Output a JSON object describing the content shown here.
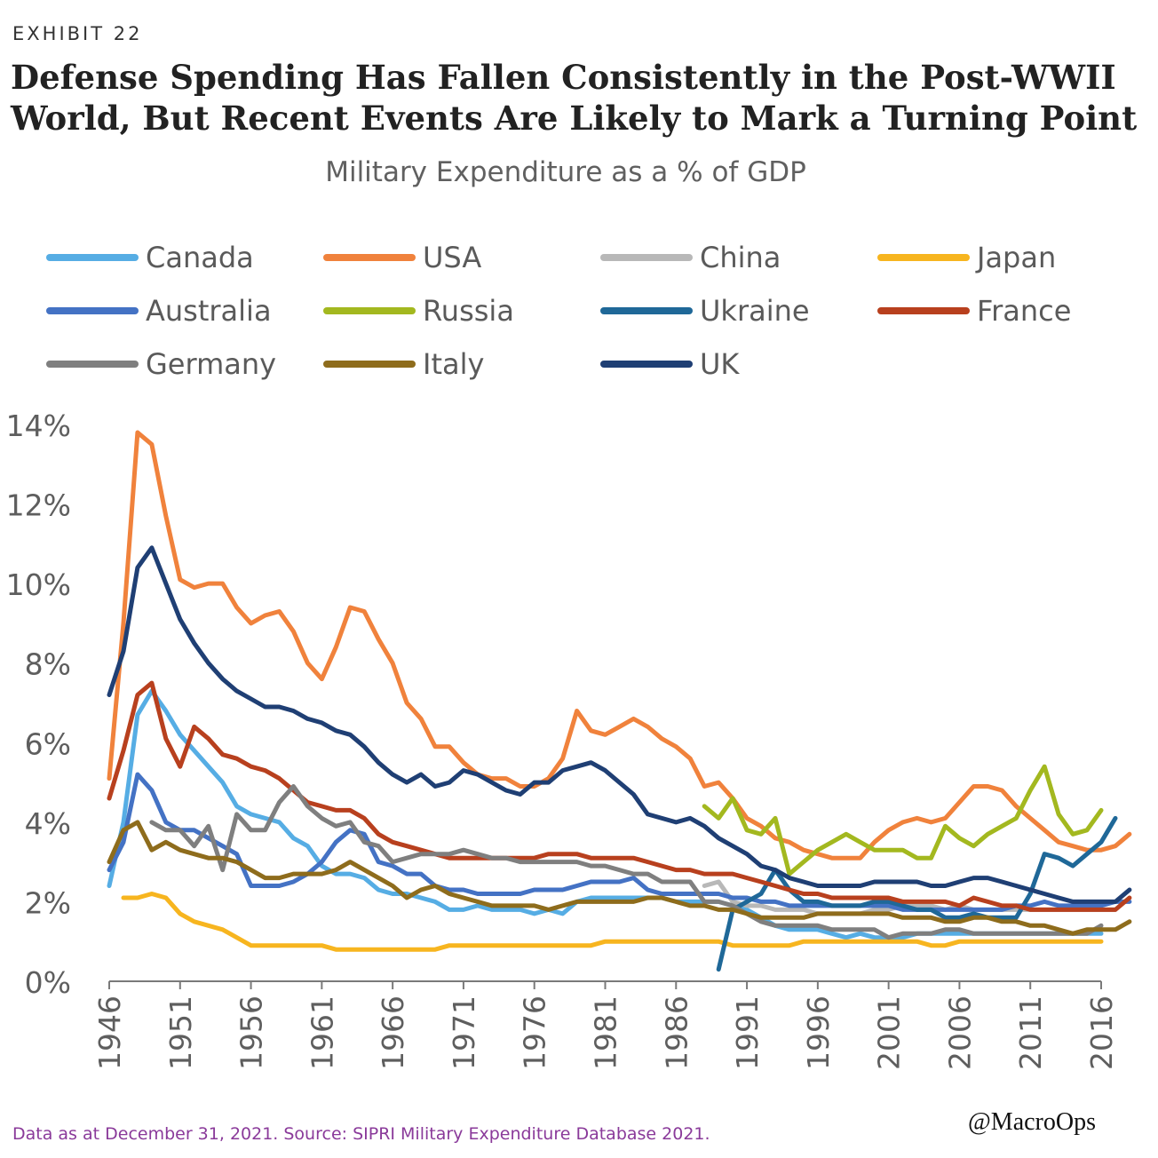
{
  "header": {
    "exhibit": "EXHIBIT 22",
    "title_line1": "Defense Spending Has Fallen Consistently in the Post-WWII",
    "title_line2": "World, But Recent Events Are Likely to Mark a Turning Point",
    "subtitle": "Military Expenditure as a % of GDP"
  },
  "footer": {
    "source": "Data as at December 31, 2021. Source: SIPRI Military Expenditure Database 2021.",
    "credit": "@MacroOps"
  },
  "chart_data": {
    "type": "line",
    "title": "Military Expenditure as a % of GDP",
    "xlabel": "",
    "ylabel": "",
    "xlim": [
      1946,
      2016
    ],
    "ylim": [
      0,
      14
    ],
    "yticks": [
      0,
      2,
      4,
      6,
      8,
      10,
      12,
      14
    ],
    "ytick_labels": [
      "0%",
      "2%",
      "4%",
      "6%",
      "8%",
      "10%",
      "12%",
      "14%"
    ],
    "xticks": [
      1946,
      1951,
      1956,
      1961,
      1966,
      1971,
      1976,
      1981,
      1986,
      1991,
      1996,
      2001,
      2006,
      2011,
      2016
    ],
    "grid": false,
    "legend_position": "top",
    "series": [
      {
        "name": "Canada",
        "color": "#56ade4",
        "start": 1946,
        "values": [
          2.4,
          4.0,
          6.7,
          7.3,
          6.8,
          6.2,
          5.8,
          5.4,
          5.0,
          4.4,
          4.2,
          4.1,
          4.0,
          3.6,
          3.4,
          2.9,
          2.7,
          2.7,
          2.6,
          2.3,
          2.2,
          2.2,
          2.1,
          2.0,
          1.8,
          1.8,
          1.9,
          1.8,
          1.8,
          1.8,
          1.7,
          1.8,
          1.7,
          2.0,
          2.1,
          2.1,
          2.1,
          2.1,
          2.1,
          2.1,
          2.0,
          2.0,
          2.0,
          2.0,
          1.9,
          1.8,
          1.6,
          1.4,
          1.3,
          1.3,
          1.3,
          1.2,
          1.1,
          1.2,
          1.1,
          1.1,
          1.1,
          1.2,
          1.2,
          1.2,
          1.2,
          1.2,
          1.2,
          1.2,
          1.2,
          1.2,
          1.2,
          1.2,
          1.2,
          1.2,
          1.2
        ]
      },
      {
        "name": "USA",
        "color": "#f0823c",
        "start": 1946,
        "values": [
          5.1,
          9.0,
          13.8,
          13.5,
          11.7,
          10.1,
          9.9,
          10.0,
          10.0,
          9.4,
          9.0,
          9.2,
          9.3,
          8.8,
          8.0,
          7.6,
          8.4,
          9.4,
          9.3,
          8.6,
          8.0,
          7.0,
          6.6,
          5.9,
          5.9,
          5.5,
          5.2,
          5.1,
          5.1,
          4.9,
          4.9,
          5.1,
          5.6,
          6.8,
          6.3,
          6.2,
          6.4,
          6.6,
          6.4,
          6.1,
          5.9,
          5.6,
          4.9,
          5.0,
          4.6,
          4.1,
          3.9,
          3.6,
          3.5,
          3.3,
          3.2,
          3.1,
          3.1,
          3.1,
          3.5,
          3.8,
          4.0,
          4.1,
          4.0,
          4.1,
          4.5,
          4.9,
          4.9,
          4.8,
          4.4,
          4.1,
          3.8,
          3.5,
          3.4,
          3.3,
          3.3,
          3.4,
          3.7
        ]
      },
      {
        "name": "China",
        "color": "#b8b8b8",
        "start": 1988,
        "values": [
          2.4,
          2.5,
          2.0,
          1.9,
          1.9,
          1.8,
          1.8,
          1.8,
          1.7,
          1.7,
          1.7,
          1.7,
          1.8,
          1.8,
          1.9,
          1.9,
          1.9,
          1.8,
          1.9,
          1.8,
          1.8,
          1.8,
          1.8,
          1.8,
          1.8,
          1.8,
          1.8,
          1.8,
          1.8,
          1.8
        ]
      },
      {
        "name": "Japan",
        "color": "#f7b51f",
        "start": 1947,
        "values": [
          2.1,
          2.1,
          2.2,
          2.1,
          1.7,
          1.5,
          1.4,
          1.3,
          1.1,
          0.9,
          0.9,
          0.9,
          0.9,
          0.9,
          0.9,
          0.8,
          0.8,
          0.8,
          0.8,
          0.8,
          0.8,
          0.8,
          0.8,
          0.9,
          0.9,
          0.9,
          0.9,
          0.9,
          0.9,
          0.9,
          0.9,
          0.9,
          0.9,
          0.9,
          1.0,
          1.0,
          1.0,
          1.0,
          1.0,
          1.0,
          1.0,
          1.0,
          1.0,
          0.9,
          0.9,
          0.9,
          0.9,
          0.9,
          1.0,
          1.0,
          1.0,
          1.0,
          1.0,
          1.0,
          1.0,
          1.0,
          1.0,
          0.9,
          0.9,
          1.0,
          1.0,
          1.0,
          1.0,
          1.0,
          1.0,
          1.0,
          1.0,
          1.0,
          1.0,
          1.0
        ]
      },
      {
        "name": "Australia",
        "color": "#4472c4",
        "start": 1946,
        "values": [
          2.8,
          3.5,
          5.2,
          4.8,
          4.0,
          3.8,
          3.8,
          3.6,
          3.4,
          3.2,
          2.4,
          2.4,
          2.4,
          2.5,
          2.7,
          3.0,
          3.5,
          3.8,
          3.7,
          3.0,
          2.9,
          2.7,
          2.7,
          2.4,
          2.3,
          2.3,
          2.2,
          2.2,
          2.2,
          2.2,
          2.3,
          2.3,
          2.3,
          2.4,
          2.5,
          2.5,
          2.5,
          2.6,
          2.3,
          2.2,
          2.2,
          2.2,
          2.2,
          2.2,
          2.1,
          2.1,
          2.0,
          2.0,
          1.9,
          1.9,
          1.9,
          1.9,
          1.9,
          1.9,
          1.9,
          1.9,
          1.8,
          1.8,
          1.8,
          1.8,
          1.8,
          1.8,
          1.8,
          1.8,
          1.9,
          1.9,
          2.0,
          1.9,
          1.9,
          1.9,
          1.9,
          2.0,
          2.0
        ]
      },
      {
        "name": "Russia",
        "color": "#a3b81f",
        "start": 1988,
        "values": [
          4.4,
          4.1,
          4.6,
          3.8,
          3.7,
          4.1,
          2.7,
          3.0,
          3.3,
          3.5,
          3.7,
          3.5,
          3.3,
          3.3,
          3.3,
          3.1,
          3.1,
          3.9,
          3.6,
          3.4,
          3.7,
          3.9,
          4.1,
          4.8,
          5.4,
          4.2,
          3.7,
          3.8,
          4.3
        ]
      },
      {
        "name": "Ukraine",
        "color": "#1f6898",
        "start": 1989,
        "values": [
          0.3,
          1.8,
          2.0,
          2.2,
          2.8,
          2.3,
          2.0,
          2.0,
          1.9,
          1.9,
          1.9,
          2.0,
          2.0,
          1.9,
          1.8,
          1.8,
          1.6,
          1.6,
          1.7,
          1.6,
          1.6,
          1.6,
          2.2,
          3.2,
          3.1,
          2.9,
          3.2,
          3.5,
          4.1
        ]
      },
      {
        "name": "France",
        "color": "#b8401e",
        "start": 1946,
        "values": [
          4.6,
          5.8,
          7.2,
          7.5,
          6.1,
          5.4,
          6.4,
          6.1,
          5.7,
          5.6,
          5.4,
          5.3,
          5.1,
          4.8,
          4.5,
          4.4,
          4.3,
          4.3,
          4.1,
          3.7,
          3.5,
          3.4,
          3.3,
          3.2,
          3.1,
          3.1,
          3.1,
          3.1,
          3.1,
          3.1,
          3.1,
          3.2,
          3.2,
          3.2,
          3.1,
          3.1,
          3.1,
          3.1,
          3.0,
          2.9,
          2.8,
          2.8,
          2.7,
          2.7,
          2.7,
          2.6,
          2.5,
          2.4,
          2.3,
          2.2,
          2.2,
          2.1,
          2.1,
          2.1,
          2.1,
          2.1,
          2.0,
          2.0,
          2.0,
          2.0,
          1.9,
          2.1,
          2.0,
          1.9,
          1.9,
          1.8,
          1.8,
          1.8,
          1.8,
          1.8,
          1.8,
          1.8,
          2.1
        ]
      },
      {
        "name": "Germany",
        "color": "#7f7f7f",
        "start": 1949,
        "values": [
          4.0,
          3.8,
          3.8,
          3.4,
          3.9,
          2.8,
          4.2,
          3.8,
          3.8,
          4.5,
          4.9,
          4.4,
          4.1,
          3.9,
          4.0,
          3.5,
          3.4,
          3.0,
          3.1,
          3.2,
          3.2,
          3.2,
          3.3,
          3.2,
          3.1,
          3.1,
          3.0,
          3.0,
          3.0,
          3.0,
          3.0,
          2.9,
          2.9,
          2.8,
          2.7,
          2.7,
          2.5,
          2.5,
          2.5,
          2.0,
          2.0,
          1.9,
          1.7,
          1.5,
          1.4,
          1.4,
          1.4,
          1.4,
          1.3,
          1.3,
          1.3,
          1.3,
          1.1,
          1.2,
          1.2,
          1.2,
          1.3,
          1.3,
          1.2,
          1.2,
          1.2,
          1.2,
          1.2,
          1.2,
          1.2,
          1.2,
          1.2,
          1.4
        ]
      },
      {
        "name": "Italy",
        "color": "#8e6c1c",
        "start": 1946,
        "values": [
          3.0,
          3.8,
          4.0,
          3.3,
          3.5,
          3.3,
          3.2,
          3.1,
          3.1,
          3.0,
          2.8,
          2.6,
          2.6,
          2.7,
          2.7,
          2.7,
          2.8,
          3.0,
          2.8,
          2.6,
          2.4,
          2.1,
          2.3,
          2.4,
          2.2,
          2.1,
          2.0,
          1.9,
          1.9,
          1.9,
          1.9,
          1.8,
          1.9,
          2.0,
          2.0,
          2.0,
          2.0,
          2.0,
          2.1,
          2.1,
          2.0,
          1.9,
          1.9,
          1.8,
          1.8,
          1.7,
          1.6,
          1.6,
          1.6,
          1.6,
          1.7,
          1.7,
          1.7,
          1.7,
          1.7,
          1.7,
          1.6,
          1.6,
          1.6,
          1.5,
          1.5,
          1.6,
          1.6,
          1.5,
          1.5,
          1.4,
          1.4,
          1.3,
          1.2,
          1.3,
          1.3,
          1.3,
          1.5
        ]
      },
      {
        "name": "UK",
        "color": "#1f3f74",
        "start": 1946,
        "values": [
          7.2,
          8.3,
          10.4,
          10.9,
          10.0,
          9.1,
          8.5,
          8.0,
          7.6,
          7.3,
          7.1,
          6.9,
          6.9,
          6.8,
          6.6,
          6.5,
          6.3,
          6.2,
          5.9,
          5.5,
          5.2,
          5.0,
          5.2,
          4.9,
          5.0,
          5.3,
          5.2,
          5.0,
          4.8,
          4.7,
          5.0,
          5.0,
          5.3,
          5.4,
          5.5,
          5.3,
          5.0,
          4.7,
          4.2,
          4.1,
          4.0,
          4.1,
          3.9,
          3.6,
          3.4,
          3.2,
          2.9,
          2.8,
          2.6,
          2.5,
          2.4,
          2.4,
          2.4,
          2.4,
          2.5,
          2.5,
          2.5,
          2.5,
          2.4,
          2.4,
          2.5,
          2.6,
          2.6,
          2.5,
          2.4,
          2.3,
          2.2,
          2.1,
          2.0,
          2.0,
          2.0,
          2.0,
          2.3
        ]
      }
    ]
  }
}
